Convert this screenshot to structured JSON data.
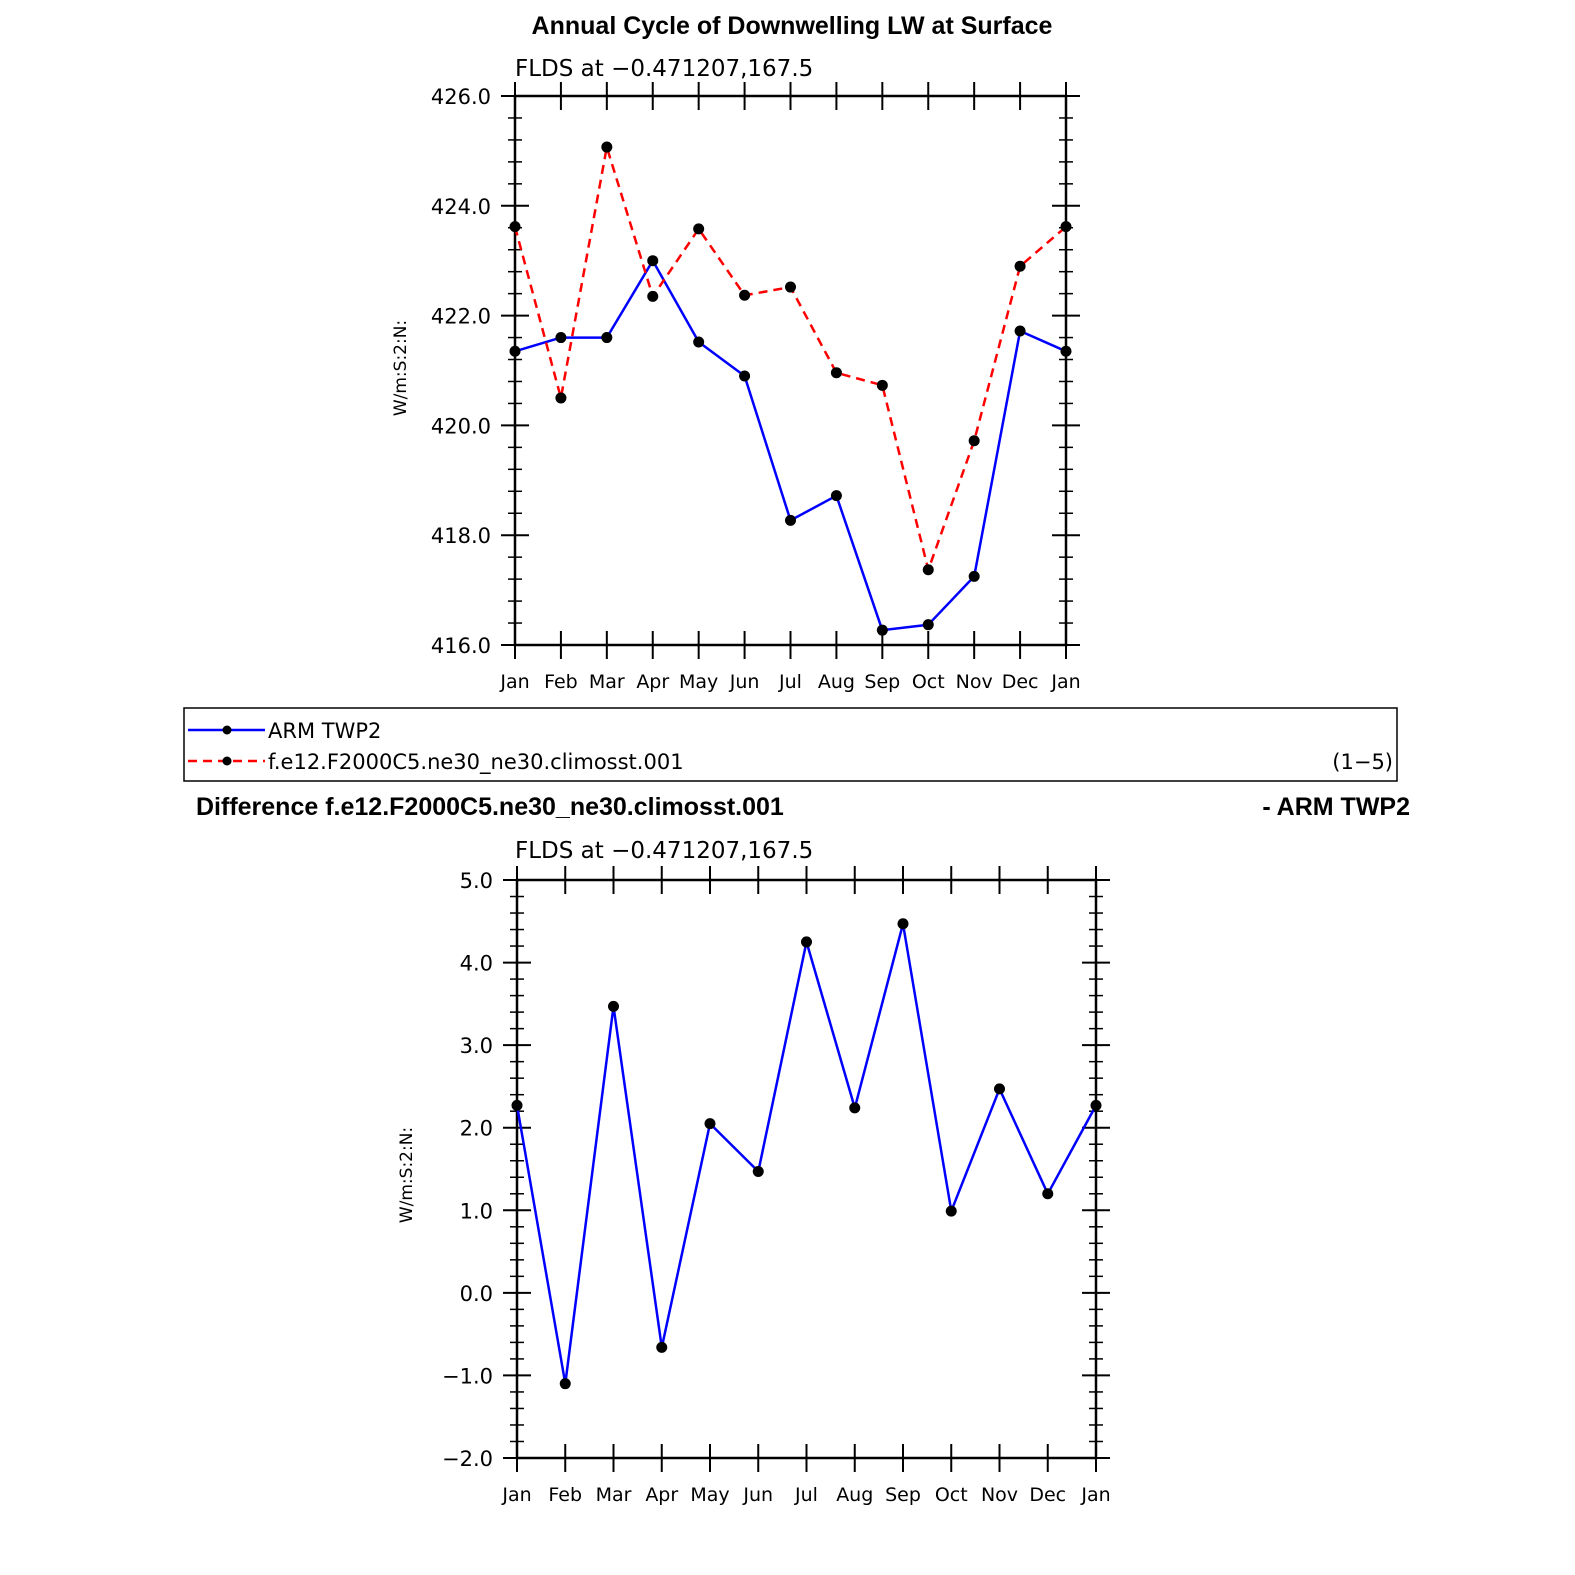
{
  "chart_data": [
    {
      "type": "line",
      "title": "Annual Cycle of Downwelling LW at Surface",
      "subtitle": "FLDS at −0.471207,167.5",
      "ylabel": "W/m:S:2:N:",
      "categories": [
        "Jan",
        "Feb",
        "Mar",
        "Apr",
        "May",
        "Jun",
        "Jul",
        "Aug",
        "Sep",
        "Oct",
        "Nov",
        "Dec",
        "Jan"
      ],
      "ylim": [
        416.0,
        426.0
      ],
      "yticks": [
        "416.0",
        "418.0",
        "420.0",
        "422.0",
        "424.0",
        "426.0"
      ],
      "series": [
        {
          "name": "ARM TWP2",
          "color": "#0000ff",
          "dash": "solid",
          "values": [
            421.35,
            421.6,
            421.6,
            423.0,
            421.52,
            420.9,
            418.27,
            418.72,
            416.27,
            416.37,
            417.25,
            421.72,
            421.35
          ]
        },
        {
          "name": "f.e12.F2000C5.ne30_ne30.climosst.001",
          "color": "#ff0000",
          "dash": "dashed",
          "values": [
            423.62,
            420.5,
            425.07,
            422.35,
            423.58,
            422.37,
            422.52,
            420.96,
            420.73,
            417.37,
            419.72,
            422.9,
            423.62
          ]
        }
      ],
      "legend": {
        "position": "bottom",
        "note": "(1−5)"
      }
    },
    {
      "type": "line",
      "title_left": "Difference f.e12.F2000C5.ne30_ne30.climosst.001",
      "title_right": "- ARM TWP2",
      "subtitle": "FLDS at −0.471207,167.5",
      "ylabel": "W/m:S:2:N:",
      "categories": [
        "Jan",
        "Feb",
        "Mar",
        "Apr",
        "May",
        "Jun",
        "Jul",
        "Aug",
        "Sep",
        "Oct",
        "Nov",
        "Dec",
        "Jan"
      ],
      "ylim": [
        -2.0,
        5.0
      ],
      "yticks": [
        "−2.0",
        "−1.0",
        "0.0",
        "1.0",
        "2.0",
        "3.0",
        "4.0",
        "5.0"
      ],
      "series": [
        {
          "color": "#0000ff",
          "dash": "solid",
          "values": [
            2.27,
            -1.1,
            3.47,
            -0.66,
            2.05,
            1.47,
            4.25,
            2.24,
            4.47,
            0.99,
            2.47,
            1.2,
            2.27
          ]
        }
      ]
    }
  ]
}
